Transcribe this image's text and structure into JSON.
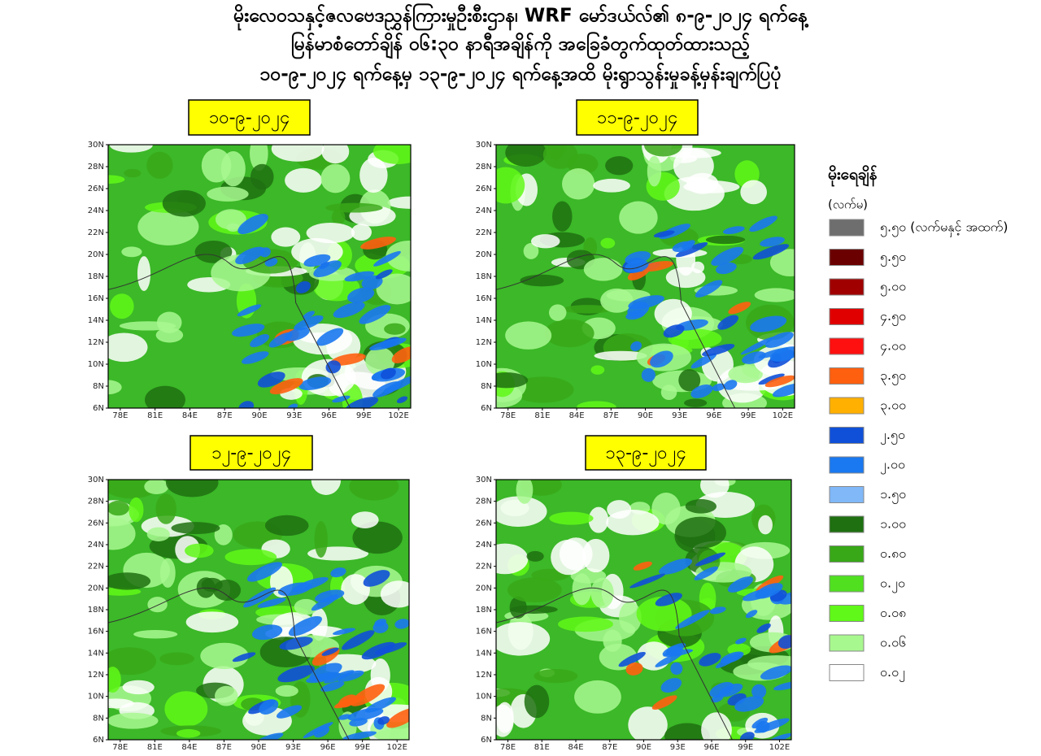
{
  "header": {
    "lines": [
      "မိုးလေဝသနှင့်ဇလဗေဒညွှန်ကြားမှုဦးစီးဌာန၊ WRF မော်ဒယ်လ်၏ ၈-၉-၂၀၂၄ ရက်နေ့",
      "မြန်မာစံတော်ချိန် ၀၆:၃၀ နာရီအချိန်ကို အခြေခံတွက်ထုတ်ထားသည့်",
      "၁၀-၉-၂၀၂၄ ရက်နေ့မှ ၁၃-၉-၂၀၂၄ ရက်နေ့အထိ မိုးရွာသွန်းမှုခန့်မှန်းချက်ပြပုံ"
    ]
  },
  "maps": {
    "dates": [
      "၁၀-၉-၂၀၂၄",
      "၁၁-၉-၂၀၂၄",
      "၁၂-၉-၂၀၂၄",
      "၁၃-၉-၂၀၂၄"
    ],
    "lat_labels": [
      "30N",
      "28N",
      "26N",
      "24N",
      "22N",
      "20N",
      "18N",
      "16N",
      "14N",
      "12N",
      "10N",
      "8N",
      "6N"
    ],
    "lon_labels": [
      "78E",
      "81E",
      "84E",
      "87E",
      "90E",
      "93E",
      "96E",
      "99E",
      "102E"
    ]
  },
  "legend": {
    "title": "မိုးရေချိန်",
    "unit": "(လက်မ)",
    "items": [
      {
        "label": "၅.၅၀ (လက်မနှင့် အထက်)",
        "color": "#6e6e6e"
      },
      {
        "label": "၅.၅၀",
        "color": "#6b0000"
      },
      {
        "label": "၅.၀၀",
        "color": "#a00000"
      },
      {
        "label": "၄.၅၀",
        "color": "#e00000"
      },
      {
        "label": "၄.၀၀",
        "color": "#ff1010"
      },
      {
        "label": "၃.၅၀",
        "color": "#ff6010"
      },
      {
        "label": "၃.၀၀",
        "color": "#ffb000"
      },
      {
        "label": "၂.၅၀",
        "color": "#1050d8"
      },
      {
        "label": "၂.၀၀",
        "color": "#1a78f0"
      },
      {
        "label": "၁.၅၀",
        "color": "#80b8f8"
      },
      {
        "label": "၁.၀၀",
        "color": "#1e7010"
      },
      {
        "label": "၀.၈၀",
        "color": "#38a818"
      },
      {
        "label": "၀.၂၀",
        "color": "#50e020"
      },
      {
        "label": "၀.၀၈",
        "color": "#60f818"
      },
      {
        "label": "၀.၀၆",
        "color": "#a8f890"
      },
      {
        "label": "၀.၀၂",
        "color": "#ffffff"
      }
    ]
  }
}
